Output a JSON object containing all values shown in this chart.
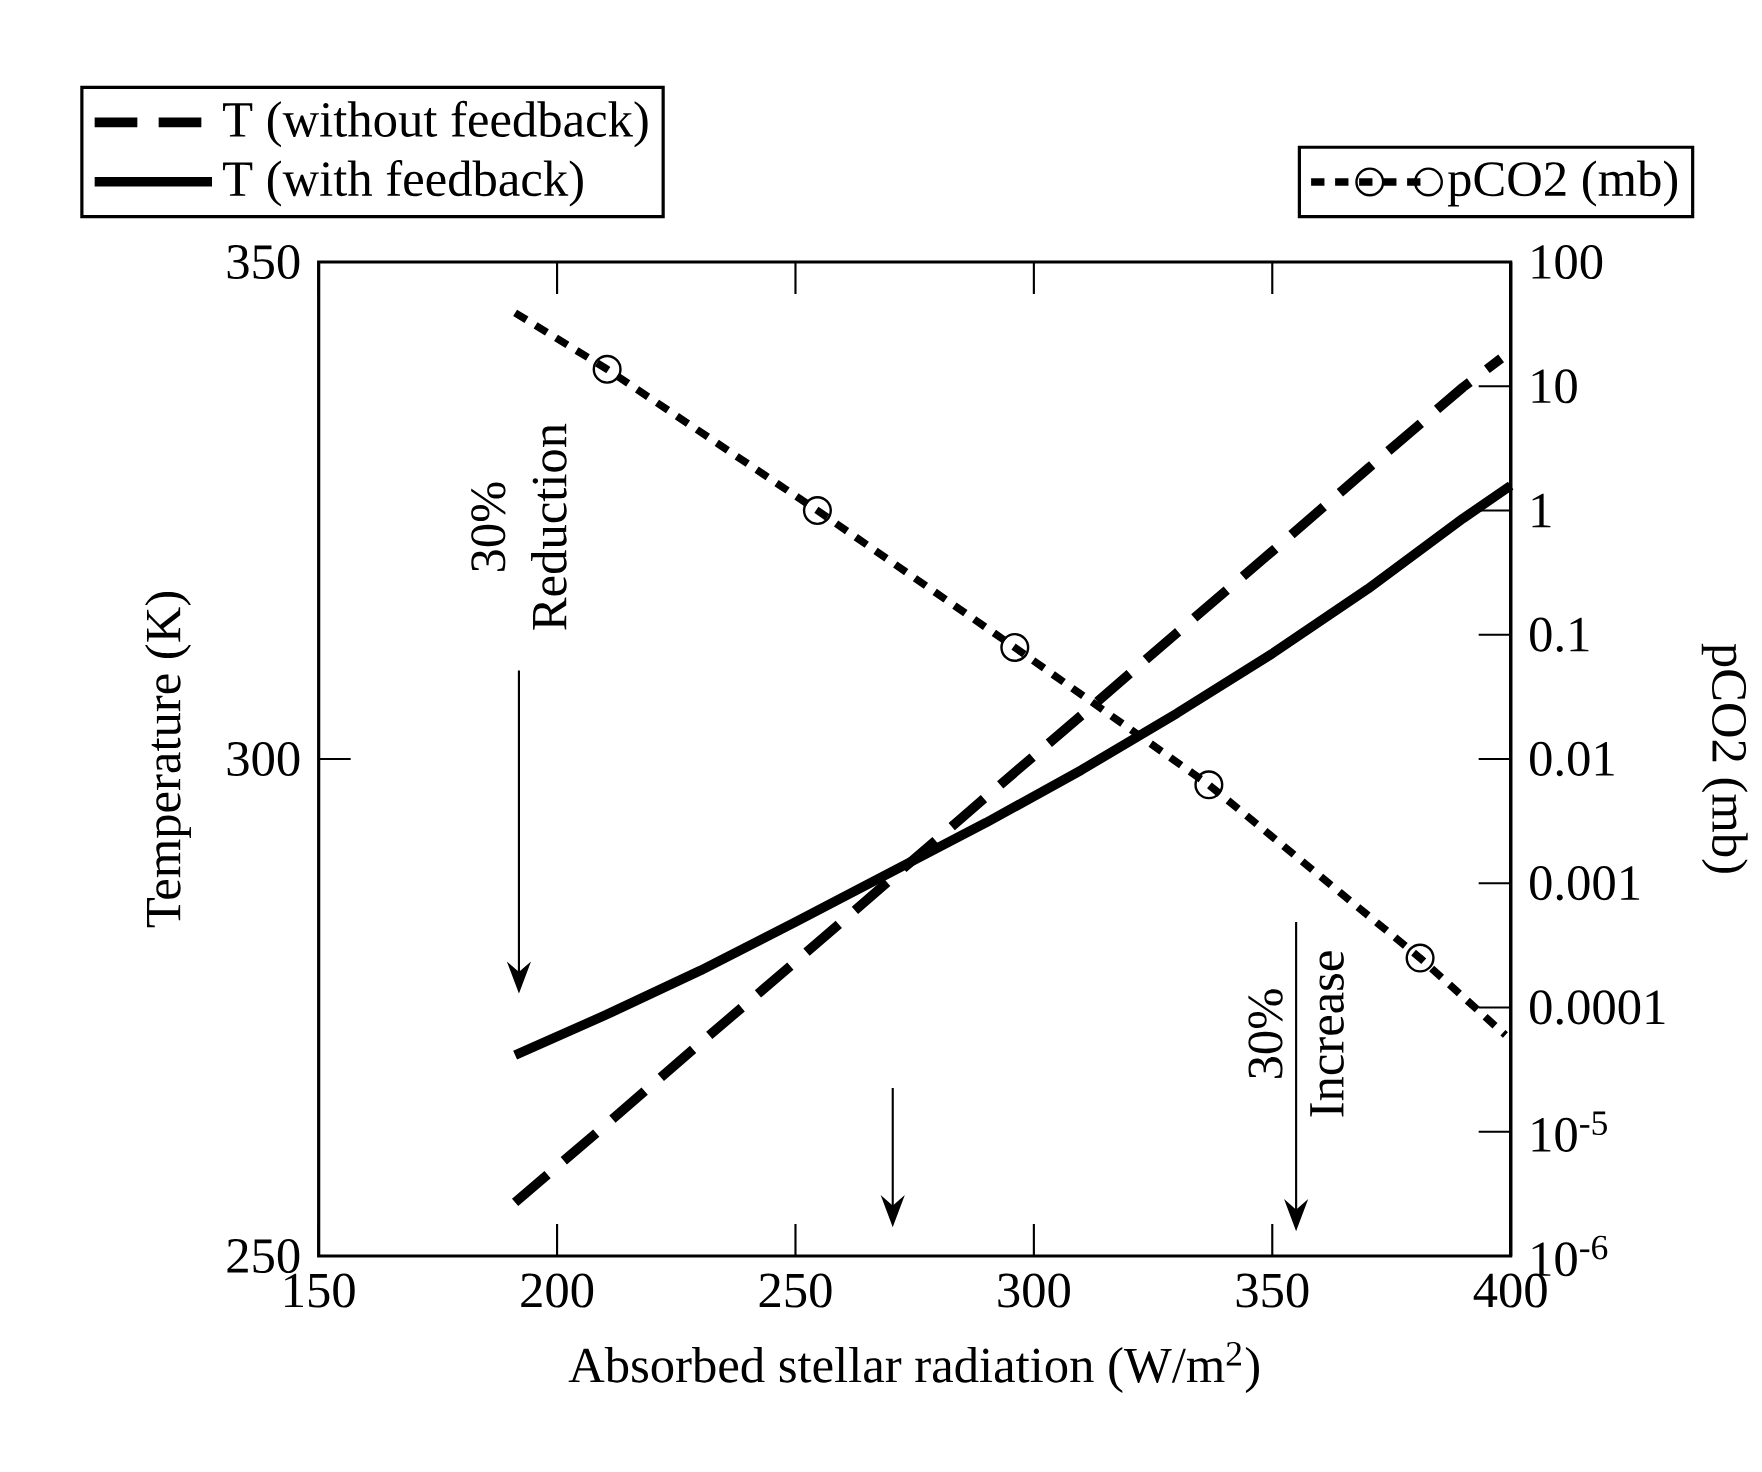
{
  "chart_data": {
    "type": "line",
    "xlabel": "Absorbed stellar radiation (W/m$^{2}$)",
    "ylabel": "Temperature (K)",
    "y2label": "pCO2 (mb)",
    "xlim": [
      150,
      400
    ],
    "xticks": [
      150,
      200,
      250,
      300,
      350,
      400
    ],
    "ylim": [
      250,
      350
    ],
    "yticks": [
      250,
      300,
      350
    ],
    "y2lim": [
      1e-06,
      100
    ],
    "y2ticks": [
      {
        "value": 1e-06,
        "label": "10$^{-6}$"
      },
      {
        "value": 1e-05,
        "label": "10$^{-5}$"
      },
      0.0001,
      0.001,
      0.01,
      0.1,
      1,
      10,
      100
    ],
    "log": "y2",
    "legend": "top",
    "series": [
      {
        "name": "T (without feedback)",
        "color": "#000000",
        "line_style": "dashed",
        "marker": "none",
        "x": [
          191.2,
          210,
          230,
          250,
          270,
          290,
          310,
          330,
          350,
          370,
          390,
          398
        ],
        "values": [
          255.4,
          263.1,
          271.4,
          279.6,
          287.9,
          296.2,
          304.4,
          312.7,
          320.9,
          329.2,
          337.4,
          340.3
        ]
      },
      {
        "name": "T (with feedback)",
        "color": "#000000",
        "line_style": "solid",
        "marker": "none",
        "x": [
          191.2,
          210,
          230,
          250,
          270,
          290,
          310,
          330,
          350,
          370,
          390,
          400
        ],
        "values": [
          270.2,
          274.2,
          278.7,
          283.6,
          288.6,
          293.6,
          298.9,
          304.6,
          310.6,
          317.1,
          324.2,
          327.5
        ]
      },
      {
        "name": "pCO2 (mb)",
        "color": "#000000",
        "axis": "y2",
        "line_style": "dotted",
        "marker": "circle",
        "x": [
          191.2,
          210.5,
          254.6,
          296,
          336.7,
          381,
          398.9
        ],
        "values": [
          39,
          13.7,
          1.0,
          0.079,
          0.0062,
          0.00025,
          6e-05
        ]
      }
    ],
    "annotations": [
      "30% Reduction",
      "30% Increase"
    ]
  }
}
